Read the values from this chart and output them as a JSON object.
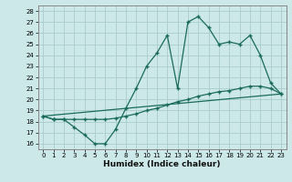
{
  "xlabel": "Humidex (Indice chaleur)",
  "bg_color": "#cce8e8",
  "grid_color": "#b0d8d8",
  "line_color": "#1a6b5a",
  "xlim": [
    -0.5,
    23.5
  ],
  "ylim": [
    15.5,
    28.5
  ],
  "yticks": [
    16,
    17,
    18,
    19,
    20,
    21,
    22,
    23,
    24,
    25,
    26,
    27,
    28
  ],
  "xticks": [
    0,
    1,
    2,
    3,
    4,
    5,
    6,
    7,
    8,
    9,
    10,
    11,
    12,
    13,
    14,
    15,
    16,
    17,
    18,
    19,
    20,
    21,
    22,
    23
  ],
  "series1_x": [
    0,
    1,
    2,
    3,
    4,
    5,
    6,
    7,
    8,
    9,
    10,
    11,
    12,
    13,
    14,
    15,
    16,
    17,
    18,
    19,
    20,
    21,
    22,
    23
  ],
  "series1_y": [
    18.5,
    18.2,
    18.2,
    17.5,
    16.8,
    16.0,
    16.0,
    17.3,
    19.2,
    21.0,
    23.0,
    24.2,
    25.8,
    21.0,
    27.0,
    27.5,
    26.5,
    25.0,
    25.2,
    25.0,
    25.8,
    24.0,
    21.5,
    20.5
  ],
  "series2_x": [
    0,
    1,
    2,
    3,
    4,
    5,
    6,
    7,
    8,
    9,
    10,
    11,
    12,
    13,
    14,
    15,
    16,
    17,
    18,
    19,
    20,
    21,
    22,
    23
  ],
  "series2_y": [
    18.5,
    18.2,
    18.2,
    18.2,
    18.2,
    18.2,
    18.2,
    18.3,
    18.5,
    18.7,
    19.0,
    19.2,
    19.5,
    19.8,
    20.0,
    20.3,
    20.5,
    20.7,
    20.8,
    21.0,
    21.2,
    21.2,
    21.0,
    20.5
  ],
  "series3_x": [
    0,
    23
  ],
  "series3_y": [
    18.5,
    20.5
  ]
}
